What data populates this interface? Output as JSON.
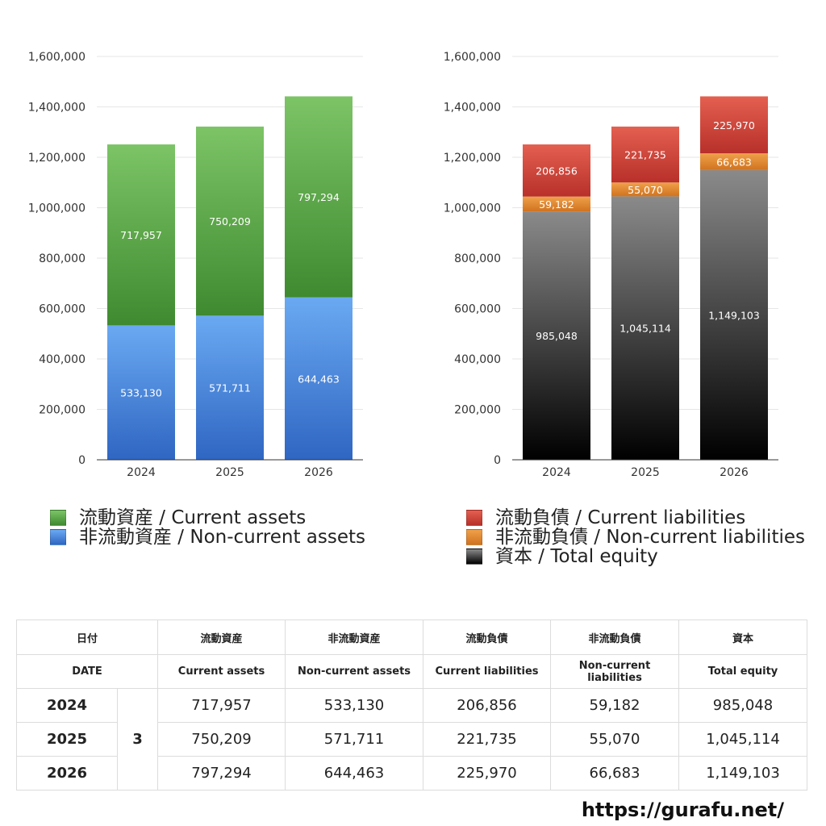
{
  "chart_data": [
    {
      "type": "bar",
      "stacked": true,
      "categories": [
        "2024",
        "2025",
        "2026"
      ],
      "ylim": [
        0,
        1600000
      ],
      "yticks": [
        "0",
        "200,000",
        "400,000",
        "600,000",
        "800,000",
        "1,000,000",
        "1,200,000",
        "1,400,000",
        "1,600,000"
      ],
      "grid": true,
      "legend_position": "bottom",
      "series": [
        {
          "name": "非流動資産 / Non-current assets",
          "values": [
            533130,
            571711,
            644463
          ],
          "labels": [
            "533,130",
            "571,711",
            "644,463"
          ],
          "color": "#4a86e0"
        },
        {
          "name": "流動資産 / Current assets",
          "values": [
            717957,
            750209,
            797294
          ],
          "labels": [
            "717,957",
            "750,209",
            "797,294"
          ],
          "color": "#4f9e3c"
        }
      ]
    },
    {
      "type": "bar",
      "stacked": true,
      "categories": [
        "2024",
        "2025",
        "2026"
      ],
      "ylim": [
        0,
        1600000
      ],
      "yticks": [
        "0",
        "200,000",
        "400,000",
        "600,000",
        "800,000",
        "1,000,000",
        "1,200,000",
        "1,400,000",
        "1,600,000"
      ],
      "grid": true,
      "legend_position": "bottom",
      "series": [
        {
          "name": "資本 / Total equity",
          "values": [
            985048,
            1045114,
            1149103
          ],
          "labels": [
            "985,048",
            "1,045,114",
            "1,149,103"
          ],
          "color": "#3a3a3a"
        },
        {
          "name": "非流動負債 / Non-current liabilities",
          "values": [
            59182,
            55070,
            66683
          ],
          "labels": [
            "59,182",
            "55,070",
            "66,683"
          ],
          "color": "#e0872f"
        },
        {
          "name": "流動負債 / Current liabilities",
          "values": [
            206856,
            221735,
            225970
          ],
          "labels": [
            "206,856",
            "221,735",
            "225,970"
          ],
          "color": "#cf3f33"
        }
      ]
    }
  ],
  "legend_left": [
    {
      "label": "流動資産 / Current assets",
      "color": "#4f9e3c"
    },
    {
      "label": "非流動資産 / Non-current assets",
      "color": "#4a86e0"
    }
  ],
  "legend_right": [
    {
      "label": "流動負債 / Current liabilities",
      "color": "#cf3f33"
    },
    {
      "label": "非流動負債 / Non-current liabilities",
      "color": "#e0872f"
    },
    {
      "label": "資本 / Total equity",
      "color": "#222222"
    }
  ],
  "table": {
    "header_ja": [
      "日付",
      "流動資産",
      "非流動資産",
      "流動負債",
      "非流動負債",
      "資本"
    ],
    "header_en": [
      "DATE",
      "Current assets",
      "Non-current assets",
      "Current liabilities",
      "Non-current liabilities",
      "Total equity"
    ],
    "rows": [
      {
        "year": "2024",
        "month": "3",
        "values": [
          "717,957",
          "533,130",
          "206,856",
          "59,182",
          "985,048"
        ]
      },
      {
        "year": "2025",
        "month": "3",
        "values": [
          "750,209",
          "571,711",
          "221,735",
          "55,070",
          "1,045,114"
        ]
      },
      {
        "year": "2026",
        "month": "3",
        "values": [
          "797,294",
          "644,463",
          "225,970",
          "66,683",
          "1,149,103"
        ]
      }
    ]
  },
  "footer": "https://gurafu.net/"
}
